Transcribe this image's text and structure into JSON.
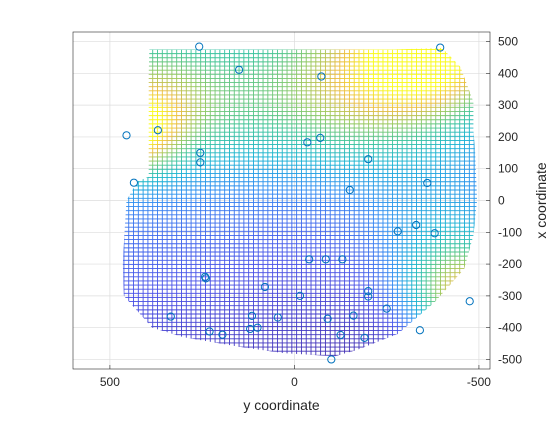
{
  "chart_data": {
    "type": "scatter",
    "title": "",
    "xlabel": "y coordinate",
    "ylabel": "x coordinate",
    "xlim": [
      -530,
      600
    ],
    "ylim": [
      -530,
      530
    ],
    "x_reversed": true,
    "y_axis_location": "right",
    "grid": true,
    "box": true,
    "x_ticks": [
      500,
      0,
      -500
    ],
    "y_ticks": [
      500,
      400,
      300,
      200,
      100,
      0,
      -100,
      -200,
      -300,
      -400,
      -500
    ],
    "mesh": {
      "description_type": "interpolated-surface-mesh",
      "colormap": "parula",
      "hull": [
        [
          255,
          475
        ],
        [
          393,
          475
        ],
        [
          395,
          400
        ],
        [
          395,
          300
        ],
        [
          395,
          190
        ],
        [
          395,
          75
        ],
        [
          425,
          60
        ],
        [
          455,
          0
        ],
        [
          460,
          -90
        ],
        [
          465,
          -200
        ],
        [
          462,
          -300
        ],
        [
          385,
          -400
        ],
        [
          300,
          -430
        ],
        [
          150,
          -460
        ],
        [
          30,
          -480
        ],
        [
          -110,
          -490
        ],
        [
          -170,
          -470
        ],
        [
          -280,
          -420
        ],
        [
          -380,
          -320
        ],
        [
          -460,
          -215
        ],
        [
          -485,
          -110
        ],
        [
          -495,
          0
        ],
        [
          -490,
          150
        ],
        [
          -485,
          220
        ],
        [
          -485,
          310
        ],
        [
          -450,
          420
        ],
        [
          -400,
          480
        ],
        [
          -270,
          475
        ]
      ]
    },
    "points": [
      {
        "x": 258,
        "y": 484
      },
      {
        "x": -395,
        "y": 481
      },
      {
        "x": 150,
        "y": 411
      },
      {
        "x": -73,
        "y": 390
      },
      {
        "x": 370,
        "y": 221
      },
      {
        "x": 455,
        "y": 205
      },
      {
        "x": -35,
        "y": 183
      },
      {
        "x": -70,
        "y": 197
      },
      {
        "x": -200,
        "y": 130
      },
      {
        "x": 255,
        "y": 150
      },
      {
        "x": 255,
        "y": 120
      },
      {
        "x": -150,
        "y": 33
      },
      {
        "x": 435,
        "y": 56
      },
      {
        "x": -360,
        "y": 55
      },
      {
        "x": -330,
        "y": -77
      },
      {
        "x": -280,
        "y": -97
      },
      {
        "x": -380,
        "y": -103
      },
      {
        "x": -40,
        "y": -185
      },
      {
        "x": -85,
        "y": -185
      },
      {
        "x": -130,
        "y": -185
      },
      {
        "x": 240,
        "y": -245
      },
      {
        "x": 242,
        "y": -240
      },
      {
        "x": 80,
        "y": -272
      },
      {
        "x": -200,
        "y": -285
      },
      {
        "x": -15,
        "y": -300
      },
      {
        "x": -200,
        "y": -302
      },
      {
        "x": -250,
        "y": -340
      },
      {
        "x": -475,
        "y": -317
      },
      {
        "x": -160,
        "y": -362
      },
      {
        "x": 335,
        "y": -365
      },
      {
        "x": 115,
        "y": -363
      },
      {
        "x": 45,
        "y": -368
      },
      {
        "x": 100,
        "y": -400
      },
      {
        "x": 120,
        "y": -404
      },
      {
        "x": -90,
        "y": -372
      },
      {
        "x": -340,
        "y": -408
      },
      {
        "x": 230,
        "y": -412
      },
      {
        "x": 195,
        "y": -422
      },
      {
        "x": -125,
        "y": -423
      },
      {
        "x": -190,
        "y": -432
      },
      {
        "x": -100,
        "y": -500
      }
    ]
  }
}
